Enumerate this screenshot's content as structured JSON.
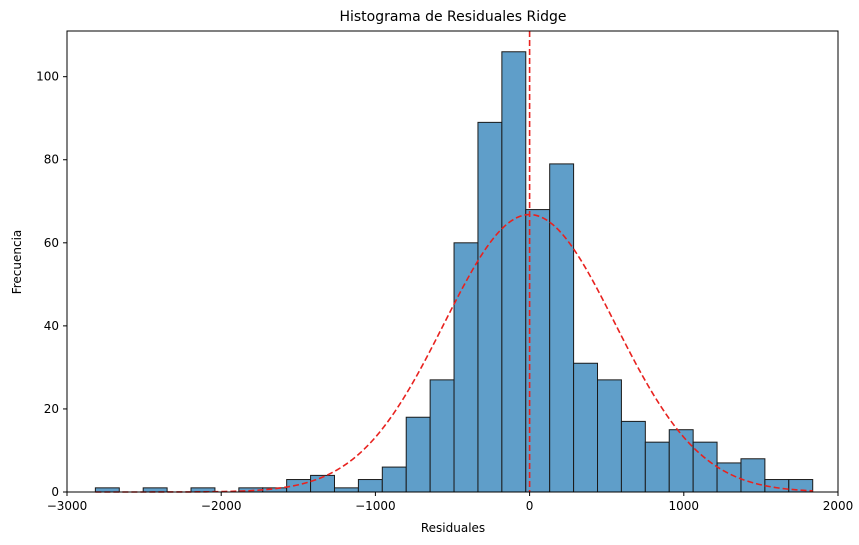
{
  "chart_data": {
    "type": "bar",
    "title": "Histograma de Residuales Ridge",
    "xlabel": "Residuales",
    "ylabel": "Frecuencia",
    "xlim": [
      -3000,
      2000
    ],
    "ylim": [
      0,
      111
    ],
    "xticks": [
      -3000,
      -2000,
      -1000,
      0,
      1000,
      2000
    ],
    "xtick_labels": [
      "−3000",
      "−2000",
      "−1000",
      "0",
      "1000",
      "2000"
    ],
    "yticks": [
      0,
      20,
      40,
      60,
      80,
      100
    ],
    "ytick_labels": [
      "0",
      "20",
      "40",
      "60",
      "80",
      "100"
    ],
    "bin_range": [
      -2816,
      1836
    ],
    "bin_count": 30,
    "values": [
      1,
      0,
      1,
      0,
      1,
      0,
      1,
      1,
      3,
      4,
      1,
      3,
      6,
      18,
      27,
      60,
      89,
      106,
      68,
      79,
      31,
      27,
      17,
      12,
      15,
      12,
      7,
      8,
      3,
      3
    ],
    "bar_color": "#5f9ec9",
    "bar_edge_color": "#1a1a1a",
    "normal_curve": {
      "mean": 0,
      "peak": 66.8,
      "std": 555,
      "color": "#e8221f",
      "style": "dashed"
    },
    "vertical_line": {
      "x": 0,
      "color": "#e8221f",
      "style": "dashed"
    },
    "grid": false,
    "legend": "none"
  }
}
